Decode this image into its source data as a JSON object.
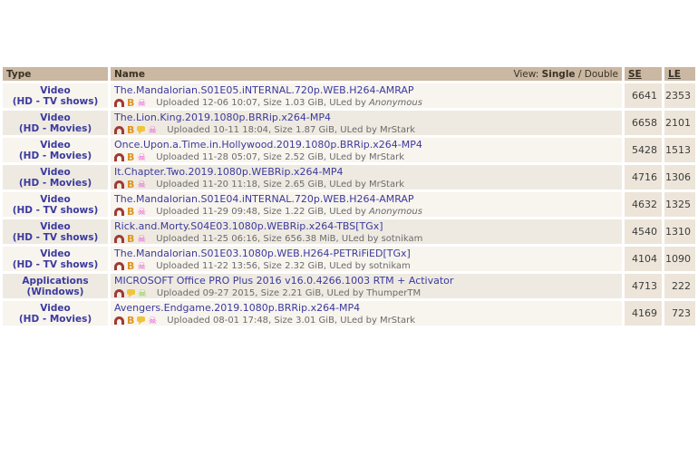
{
  "colors": {
    "header_bg": "#cbb8a2",
    "row_odd_bg": "#f8f4ee",
    "row_even_bg": "#efeae1",
    "sele_col_bg": "#ede5d9",
    "link": "#3a3a9e",
    "desc_text": "#6b6b6b",
    "magnet": "#9e3b34",
    "b_badge": "#de9422",
    "comment_bubble": "#f0c53c",
    "trusted_skull": "#e455ce",
    "vip_skull": "#77cc33"
  },
  "icon_glyphs": {
    "b-badge": "B",
    "trusted-skull": "☠",
    "vip-skull": "☠"
  },
  "table": {
    "headers": {
      "type": "Type",
      "name": "Name",
      "se": "SE",
      "le": "LE"
    },
    "view_switch": {
      "label": "View:",
      "single": "Single",
      "separator": "/",
      "double": "Double"
    },
    "rows": [
      {
        "category": "Video",
        "subcategory": "(HD - TV shows)",
        "name": "The.Mandalorian.S01E05.iNTERNAL.720p.WEB.H264-AMRAP",
        "icons": [
          "magnet",
          "b-badge",
          "trusted-skull"
        ],
        "details": "Uploaded 12-06 10:07, Size 1.03 GiB, ULed by",
        "uploader": "Anonymous",
        "anonymous": true,
        "se": "6641",
        "le": "2353"
      },
      {
        "category": "Video",
        "subcategory": "(HD - Movies)",
        "name": "The.Lion.King.2019.1080p.BRRip.x264-MP4",
        "icons": [
          "magnet",
          "b-badge",
          "comment-bubble",
          "trusted-skull"
        ],
        "details": "Uploaded 10-11 18:04, Size 1.87 GiB, ULed by",
        "uploader": "MrStark",
        "anonymous": false,
        "se": "6658",
        "le": "2101"
      },
      {
        "category": "Video",
        "subcategory": "(HD - Movies)",
        "name": "Once.Upon.a.Time.in.Hollywood.2019.1080p.BRRip.x264-MP4",
        "icons": [
          "magnet",
          "b-badge",
          "trusted-skull"
        ],
        "details": "Uploaded 11-28 05:07, Size 2.52 GiB, ULed by",
        "uploader": "MrStark",
        "anonymous": false,
        "se": "5428",
        "le": "1513"
      },
      {
        "category": "Video",
        "subcategory": "(HD - Movies)",
        "name": "It.Chapter.Two.2019.1080p.WEBRip.x264-MP4",
        "icons": [
          "magnet",
          "b-badge",
          "trusted-skull"
        ],
        "details": "Uploaded 11-20 11:18, Size 2.65 GiB, ULed by",
        "uploader": "MrStark",
        "anonymous": false,
        "se": "4716",
        "le": "1306"
      },
      {
        "category": "Video",
        "subcategory": "(HD - TV shows)",
        "name": "The.Mandalorian.S01E04.iNTERNAL.720p.WEB.H264-AMRAP",
        "icons": [
          "magnet",
          "b-badge",
          "trusted-skull"
        ],
        "details": "Uploaded 11-29 09:48, Size 1.22 GiB, ULed by",
        "uploader": "Anonymous",
        "anonymous": true,
        "se": "4632",
        "le": "1325"
      },
      {
        "category": "Video",
        "subcategory": "(HD - TV shows)",
        "name": "Rick.and.Morty.S04E03.1080p.WEBRip.x264-TBS[TGx]",
        "icons": [
          "magnet",
          "b-badge",
          "trusted-skull"
        ],
        "details": "Uploaded 11-25 06:16, Size 656.38 MiB, ULed by",
        "uploader": "sotnikam",
        "anonymous": false,
        "se": "4540",
        "le": "1310"
      },
      {
        "category": "Video",
        "subcategory": "(HD - TV shows)",
        "name": "The.Mandalorian.S01E03.1080p.WEB.H264-PETRiFiED[TGx]",
        "icons": [
          "magnet",
          "b-badge",
          "trusted-skull"
        ],
        "details": "Uploaded 11-22 13:56, Size 2.32 GiB, ULed by",
        "uploader": "sotnikam",
        "anonymous": false,
        "se": "4104",
        "le": "1090"
      },
      {
        "category": "Applications",
        "subcategory": "(Windows)",
        "name": "MICROSOFT Office PRO Plus 2016 v16.0.4266.1003 RTM + Activator",
        "icons": [
          "magnet",
          "comment-bubble",
          "vip-skull"
        ],
        "details": "Uploaded 09-27 2015, Size 2.21 GiB, ULed by",
        "uploader": "ThumperTM",
        "anonymous": false,
        "se": "4713",
        "le": "222"
      },
      {
        "category": "Video",
        "subcategory": "(HD - Movies)",
        "name": "Avengers.Endgame.2019.1080p.BRRip.x264-MP4",
        "icons": [
          "magnet",
          "b-badge",
          "comment-bubble",
          "trusted-skull"
        ],
        "details": "Uploaded 08-01 17:48, Size 3.01 GiB, ULed by",
        "uploader": "MrStark",
        "anonymous": false,
        "se": "4169",
        "le": "723"
      }
    ]
  }
}
